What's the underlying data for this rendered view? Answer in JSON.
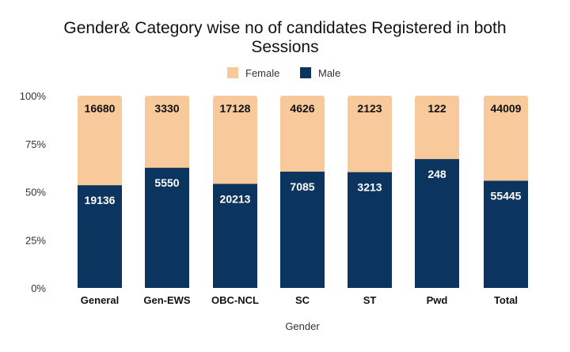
{
  "chart_data": {
    "type": "bar",
    "stacked": "percent",
    "title": "Gender& Category wise no of candidates Registered in both Sessions",
    "title_lines": [
      "Gender& Category wise no of candidates Registered in both",
      "Sessions"
    ],
    "xlabel": "Gender",
    "ylabel": "",
    "ylim": [
      0,
      100
    ],
    "yticks": [
      "0%",
      "25%",
      "50%",
      "75%",
      "100%"
    ],
    "legend_position": "top-center",
    "categories": [
      "General",
      "Gen-EWS",
      "OBC-NCL",
      "SC",
      "ST",
      "Pwd",
      "Total"
    ],
    "series": [
      {
        "name": "Male",
        "color": "#0b355e",
        "label_color": "#ffffff",
        "values": [
          19136,
          5550,
          20213,
          7085,
          3213,
          248,
          55445
        ]
      },
      {
        "name": "Female",
        "color": "#f8c99a",
        "label_color": "#111111",
        "values": [
          16680,
          3330,
          17128,
          4626,
          2123,
          122,
          44009
        ]
      }
    ]
  }
}
